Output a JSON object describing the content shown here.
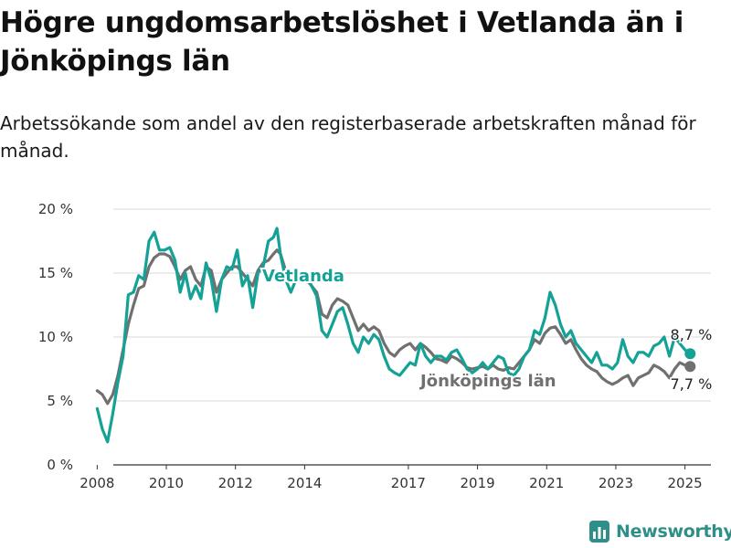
{
  "title": "Högre ungdomsarbetslöshet i Vetlanda än i Jönköpings län",
  "subtitle": "Arbetssökande som andel av den registerbaserade arbetskraften månad för månad.",
  "brand": {
    "name": "Newsworthy"
  },
  "colors": {
    "vetlanda": "#14a196",
    "lan": "#707070",
    "grid": "#d9d9d9",
    "axis": "#333333",
    "brand": "#2f8f88"
  },
  "chart_data": {
    "type": "line",
    "title": "Högre ungdomsarbetslöshet i Vetlanda än i Jönköpings län",
    "ylim": [
      0,
      20
    ],
    "yticks": [
      0,
      5,
      10,
      15,
      20
    ],
    "ytick_labels": [
      "0 %",
      "5 %",
      "10 %",
      "15 %",
      "20 %"
    ],
    "xlim": [
      2007.7,
      2025.75
    ],
    "x_tick_labels": [
      "2008",
      "2010",
      "2012",
      "2014",
      "2017",
      "2019",
      "2021",
      "2023",
      "2025"
    ],
    "grid": true,
    "legend": "inline labels",
    "series": [
      {
        "name": "Vetlanda",
        "end_label": "8,7 %",
        "points": [
          [
            2008.0,
            4.4
          ],
          [
            2008.15,
            2.8
          ],
          [
            2008.3,
            1.8
          ],
          [
            2008.45,
            4.0
          ],
          [
            2008.6,
            6.5
          ],
          [
            2008.75,
            8.5
          ],
          [
            2008.9,
            13.3
          ],
          [
            2009.05,
            13.5
          ],
          [
            2009.2,
            14.8
          ],
          [
            2009.35,
            14.5
          ],
          [
            2009.5,
            17.5
          ],
          [
            2009.65,
            18.2
          ],
          [
            2009.8,
            16.8
          ],
          [
            2009.95,
            16.8
          ],
          [
            2010.1,
            17.0
          ],
          [
            2010.25,
            16.0
          ],
          [
            2010.4,
            13.5
          ],
          [
            2010.55,
            15.0
          ],
          [
            2010.7,
            13.0
          ],
          [
            2010.85,
            14.0
          ],
          [
            2011.0,
            13.0
          ],
          [
            2011.15,
            15.8
          ],
          [
            2011.3,
            14.5
          ],
          [
            2011.45,
            12.0
          ],
          [
            2011.6,
            14.5
          ],
          [
            2011.75,
            15.5
          ],
          [
            2011.9,
            15.3
          ],
          [
            2012.05,
            16.8
          ],
          [
            2012.2,
            14.0
          ],
          [
            2012.35,
            14.8
          ],
          [
            2012.5,
            12.3
          ],
          [
            2012.65,
            15.0
          ],
          [
            2012.8,
            15.5
          ],
          [
            2012.95,
            17.5
          ],
          [
            2013.1,
            17.8
          ],
          [
            2013.2,
            18.5
          ],
          [
            2013.3,
            16.5
          ],
          [
            2013.45,
            14.5
          ],
          [
            2013.6,
            13.5
          ],
          [
            2013.75,
            14.5
          ],
          [
            2013.9,
            14.5
          ],
          [
            2014.05,
            14.8
          ],
          [
            2014.2,
            14.0
          ],
          [
            2014.35,
            13.2
          ],
          [
            2014.5,
            10.5
          ],
          [
            2014.65,
            10.0
          ],
          [
            2014.8,
            11.0
          ],
          [
            2014.95,
            12.0
          ],
          [
            2015.1,
            12.3
          ],
          [
            2015.25,
            11.0
          ],
          [
            2015.4,
            9.5
          ],
          [
            2015.55,
            8.8
          ],
          [
            2015.7,
            10.0
          ],
          [
            2015.85,
            9.5
          ],
          [
            2016.0,
            10.2
          ],
          [
            2016.15,
            9.8
          ],
          [
            2016.3,
            8.5
          ],
          [
            2016.45,
            7.5
          ],
          [
            2016.6,
            7.2
          ],
          [
            2016.75,
            7.0
          ],
          [
            2016.9,
            7.5
          ],
          [
            2017.05,
            8.0
          ],
          [
            2017.2,
            7.8
          ],
          [
            2017.35,
            9.5
          ],
          [
            2017.5,
            8.5
          ],
          [
            2017.65,
            8.0
          ],
          [
            2017.8,
            8.5
          ],
          [
            2017.95,
            8.5
          ],
          [
            2018.1,
            8.2
          ],
          [
            2018.25,
            8.8
          ],
          [
            2018.4,
            9.0
          ],
          [
            2018.55,
            8.3
          ],
          [
            2018.7,
            7.5
          ],
          [
            2018.85,
            7.2
          ],
          [
            2019.0,
            7.5
          ],
          [
            2019.15,
            8.0
          ],
          [
            2019.3,
            7.5
          ],
          [
            2019.45,
            8.0
          ],
          [
            2019.6,
            8.5
          ],
          [
            2019.75,
            8.3
          ],
          [
            2019.9,
            7.2
          ],
          [
            2020.05,
            7.0
          ],
          [
            2020.2,
            7.5
          ],
          [
            2020.35,
            8.5
          ],
          [
            2020.5,
            9.0
          ],
          [
            2020.65,
            10.5
          ],
          [
            2020.8,
            10.2
          ],
          [
            2020.95,
            11.5
          ],
          [
            2021.1,
            13.5
          ],
          [
            2021.25,
            12.5
          ],
          [
            2021.4,
            11.0
          ],
          [
            2021.55,
            10.0
          ],
          [
            2021.7,
            10.5
          ],
          [
            2021.85,
            9.5
          ],
          [
            2022.0,
            9.0
          ],
          [
            2022.15,
            8.5
          ],
          [
            2022.3,
            8.0
          ],
          [
            2022.45,
            8.8
          ],
          [
            2022.6,
            7.8
          ],
          [
            2022.75,
            7.8
          ],
          [
            2022.9,
            7.5
          ],
          [
            2023.05,
            8.0
          ],
          [
            2023.2,
            9.8
          ],
          [
            2023.35,
            8.5
          ],
          [
            2023.5,
            8.0
          ],
          [
            2023.65,
            8.8
          ],
          [
            2023.8,
            8.8
          ],
          [
            2023.95,
            8.5
          ],
          [
            2024.1,
            9.3
          ],
          [
            2024.25,
            9.5
          ],
          [
            2024.4,
            10.0
          ],
          [
            2024.55,
            8.5
          ],
          [
            2024.7,
            10.0
          ],
          [
            2024.85,
            9.5
          ],
          [
            2025.0,
            9.0
          ],
          [
            2025.15,
            8.7
          ]
        ]
      },
      {
        "name": "Jönköpings län",
        "end_label": "7,7 %",
        "points": [
          [
            2008.0,
            5.8
          ],
          [
            2008.15,
            5.5
          ],
          [
            2008.3,
            4.8
          ],
          [
            2008.45,
            5.5
          ],
          [
            2008.6,
            7.0
          ],
          [
            2008.75,
            9.0
          ],
          [
            2008.9,
            11.0
          ],
          [
            2009.05,
            12.5
          ],
          [
            2009.2,
            13.8
          ],
          [
            2009.35,
            14.0
          ],
          [
            2009.5,
            15.5
          ],
          [
            2009.65,
            16.2
          ],
          [
            2009.8,
            16.5
          ],
          [
            2009.95,
            16.5
          ],
          [
            2010.1,
            16.3
          ],
          [
            2010.25,
            15.5
          ],
          [
            2010.4,
            14.5
          ],
          [
            2010.55,
            15.2
          ],
          [
            2010.7,
            15.5
          ],
          [
            2010.85,
            14.5
          ],
          [
            2011.0,
            14.0
          ],
          [
            2011.15,
            15.5
          ],
          [
            2011.3,
            15.2
          ],
          [
            2011.45,
            13.5
          ],
          [
            2011.6,
            14.5
          ],
          [
            2011.75,
            15.0
          ],
          [
            2011.9,
            15.5
          ],
          [
            2012.05,
            15.5
          ],
          [
            2012.2,
            15.0
          ],
          [
            2012.35,
            14.5
          ],
          [
            2012.5,
            14.0
          ],
          [
            2012.65,
            15.2
          ],
          [
            2012.8,
            15.8
          ],
          [
            2012.95,
            16.0
          ],
          [
            2013.1,
            16.5
          ],
          [
            2013.2,
            16.8
          ],
          [
            2013.3,
            16.5
          ],
          [
            2013.45,
            15.2
          ],
          [
            2013.6,
            14.5
          ],
          [
            2013.75,
            14.5
          ],
          [
            2013.9,
            14.8
          ],
          [
            2014.05,
            14.5
          ],
          [
            2014.2,
            14.0
          ],
          [
            2014.35,
            13.5
          ],
          [
            2014.5,
            11.8
          ],
          [
            2014.65,
            11.5
          ],
          [
            2014.8,
            12.5
          ],
          [
            2014.95,
            13.0
          ],
          [
            2015.1,
            12.8
          ],
          [
            2015.25,
            12.5
          ],
          [
            2015.4,
            11.5
          ],
          [
            2015.55,
            10.5
          ],
          [
            2015.7,
            11.0
          ],
          [
            2015.85,
            10.5
          ],
          [
            2016.0,
            10.8
          ],
          [
            2016.15,
            10.5
          ],
          [
            2016.3,
            9.5
          ],
          [
            2016.45,
            8.8
          ],
          [
            2016.6,
            8.5
          ],
          [
            2016.75,
            9.0
          ],
          [
            2016.9,
            9.3
          ],
          [
            2017.05,
            9.5
          ],
          [
            2017.2,
            9.0
          ],
          [
            2017.35,
            9.5
          ],
          [
            2017.5,
            9.2
          ],
          [
            2017.65,
            8.8
          ],
          [
            2017.8,
            8.3
          ],
          [
            2017.95,
            8.2
          ],
          [
            2018.1,
            8.0
          ],
          [
            2018.25,
            8.5
          ],
          [
            2018.4,
            8.3
          ],
          [
            2018.55,
            8.0
          ],
          [
            2018.7,
            7.6
          ],
          [
            2018.85,
            7.5
          ],
          [
            2019.0,
            7.6
          ],
          [
            2019.15,
            7.7
          ],
          [
            2019.3,
            7.5
          ],
          [
            2019.45,
            7.8
          ],
          [
            2019.6,
            7.5
          ],
          [
            2019.75,
            7.4
          ],
          [
            2019.9,
            7.6
          ],
          [
            2020.05,
            7.5
          ],
          [
            2020.2,
            8.0
          ],
          [
            2020.35,
            8.5
          ],
          [
            2020.5,
            9.0
          ],
          [
            2020.65,
            9.8
          ],
          [
            2020.8,
            9.5
          ],
          [
            2020.95,
            10.3
          ],
          [
            2021.1,
            10.7
          ],
          [
            2021.25,
            10.8
          ],
          [
            2021.4,
            10.2
          ],
          [
            2021.55,
            9.5
          ],
          [
            2021.7,
            9.8
          ],
          [
            2021.85,
            9.0
          ],
          [
            2022.0,
            8.3
          ],
          [
            2022.15,
            7.8
          ],
          [
            2022.3,
            7.5
          ],
          [
            2022.45,
            7.3
          ],
          [
            2022.6,
            6.8
          ],
          [
            2022.75,
            6.5
          ],
          [
            2022.9,
            6.3
          ],
          [
            2023.05,
            6.5
          ],
          [
            2023.2,
            6.8
          ],
          [
            2023.35,
            7.0
          ],
          [
            2023.5,
            6.2
          ],
          [
            2023.65,
            6.8
          ],
          [
            2023.8,
            7.0
          ],
          [
            2023.95,
            7.2
          ],
          [
            2024.1,
            7.8
          ],
          [
            2024.25,
            7.6
          ],
          [
            2024.4,
            7.3
          ],
          [
            2024.55,
            6.8
          ],
          [
            2024.7,
            7.5
          ],
          [
            2024.85,
            8.0
          ],
          [
            2025.0,
            7.8
          ],
          [
            2025.15,
            7.7
          ]
        ]
      }
    ]
  }
}
